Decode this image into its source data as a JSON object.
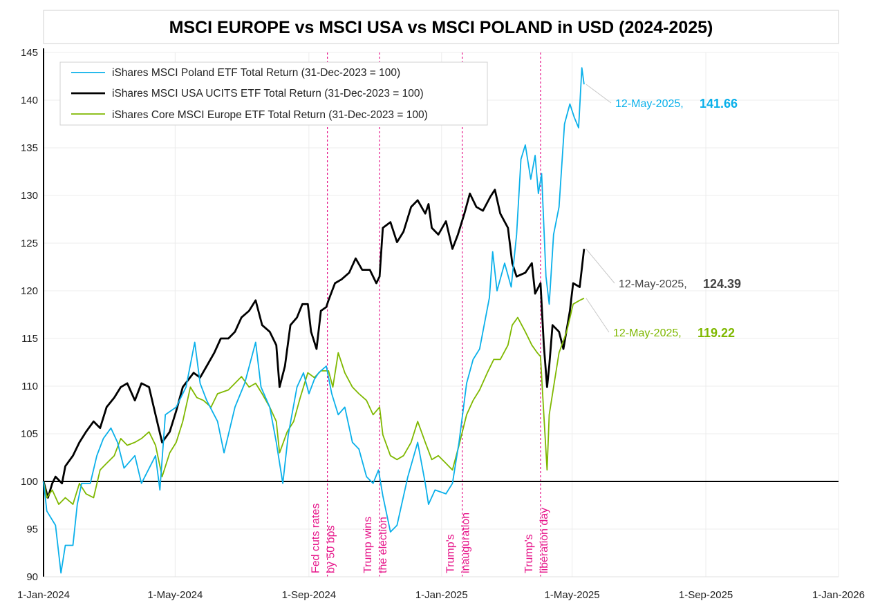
{
  "chart_data": {
    "type": "line",
    "title": "MSCI EUROPE vs MSCI USA vs MSCI POLAND in USD (2024-2025)",
    "x_unit": "days since 1-Jan-2024",
    "xlim": [
      0,
      731
    ],
    "ylim": [
      90,
      145
    ],
    "yticks": [
      90,
      95,
      100,
      105,
      110,
      115,
      120,
      125,
      130,
      135,
      140,
      145
    ],
    "xticks": [
      {
        "day": 0,
        "label": "1-Jan-2024"
      },
      {
        "day": 121,
        "label": "1-May-2024"
      },
      {
        "day": 244,
        "label": "1-Sep-2024"
      },
      {
        "day": 366,
        "label": "1-Jan-2025"
      },
      {
        "day": 486,
        "label": "1-May-2025"
      },
      {
        "day": 609,
        "label": "1-Sep-2025"
      },
      {
        "day": 731,
        "label": "1-Jan-2026"
      }
    ],
    "grid": true,
    "baseline": 100,
    "legend_position": "top-left",
    "series": [
      {
        "name": "iShares MSCI Poland ETF Total Return (31-Dec-2023 = 100)",
        "color": "#0ab0ea",
        "width": 1.8,
        "end_label": {
          "date": "12-May-2025,",
          "value": "141.66"
        },
        "points": [
          [
            0,
            100
          ],
          [
            3,
            96.9
          ],
          [
            11,
            95.4
          ],
          [
            16,
            90.4
          ],
          [
            20,
            93.3
          ],
          [
            27,
            93.3
          ],
          [
            31,
            97.6
          ],
          [
            35,
            99.8
          ],
          [
            43,
            99.8
          ],
          [
            49,
            102.7
          ],
          [
            55,
            104.5
          ],
          [
            62,
            105.6
          ],
          [
            68,
            104.1
          ],
          [
            74,
            101.4
          ],
          [
            84,
            102.7
          ],
          [
            90,
            99.8
          ],
          [
            103,
            102.7
          ],
          [
            107,
            99.1
          ],
          [
            112,
            107
          ],
          [
            122,
            107.8
          ],
          [
            131,
            109.9
          ],
          [
            139,
            114.6
          ],
          [
            144,
            110.3
          ],
          [
            150,
            108.5
          ],
          [
            160,
            106.3
          ],
          [
            166,
            103
          ],
          [
            176,
            107.8
          ],
          [
            185,
            110.3
          ],
          [
            195,
            114.6
          ],
          [
            200,
            109.9
          ],
          [
            208,
            107.8
          ],
          [
            214,
            104.1
          ],
          [
            220,
            99.8
          ],
          [
            225,
            104.9
          ],
          [
            233,
            109.9
          ],
          [
            239,
            111.4
          ],
          [
            244,
            109.2
          ],
          [
            249,
            110.7
          ],
          [
            253,
            111.4
          ],
          [
            260,
            112.1
          ],
          [
            265,
            109.2
          ],
          [
            271,
            107
          ],
          [
            277,
            107.8
          ],
          [
            284,
            104.1
          ],
          [
            290,
            103.4
          ],
          [
            297,
            100.5
          ],
          [
            303,
            99.8
          ],
          [
            308,
            101.2
          ],
          [
            312,
            98.5
          ],
          [
            319,
            94.7
          ],
          [
            325,
            95.4
          ],
          [
            335,
            100.5
          ],
          [
            344,
            104.1
          ],
          [
            351,
            99.8
          ],
          [
            354,
            97.6
          ],
          [
            360,
            99.1
          ],
          [
            370,
            98.7
          ],
          [
            376,
            99.8
          ],
          [
            382,
            104.1
          ],
          [
            389,
            110.3
          ],
          [
            395,
            112.8
          ],
          [
            401,
            113.9
          ],
          [
            410,
            119.3
          ],
          [
            413,
            124.1
          ],
          [
            417,
            120
          ],
          [
            424,
            122.9
          ],
          [
            430,
            120.4
          ],
          [
            435,
            125.9
          ],
          [
            439,
            133.8
          ],
          [
            443,
            135.3
          ],
          [
            448,
            131.7
          ],
          [
            452,
            134.2
          ],
          [
            455,
            130.2
          ],
          [
            458,
            132.3
          ],
          [
            462,
            121.5
          ],
          [
            465,
            118.6
          ],
          [
            469,
            125.9
          ],
          [
            474,
            128.8
          ],
          [
            479,
            137.5
          ],
          [
            484,
            139.6
          ],
          [
            488,
            138.2
          ],
          [
            492,
            137.1
          ],
          [
            495,
            143.4
          ],
          [
            497,
            141.66
          ]
        ]
      },
      {
        "name": "iShares MSCI USA UCITS ETF Total Return (31-Dec-2023 = 100)",
        "color": "#000000",
        "width": 2.8,
        "end_label": {
          "date": "12-May-2025,",
          "value": "124.39"
        },
        "points": [
          [
            0,
            100
          ],
          [
            4,
            98.3
          ],
          [
            8,
            99.8
          ],
          [
            11,
            100.5
          ],
          [
            17,
            99.8
          ],
          [
            20,
            101.6
          ],
          [
            27,
            102.7
          ],
          [
            33,
            104.1
          ],
          [
            39,
            105.2
          ],
          [
            46,
            106.3
          ],
          [
            52,
            105.6
          ],
          [
            58,
            107.8
          ],
          [
            65,
            108.8
          ],
          [
            71,
            109.9
          ],
          [
            77,
            110.3
          ],
          [
            84,
            108.5
          ],
          [
            90,
            110.3
          ],
          [
            97,
            109.9
          ],
          [
            103,
            107
          ],
          [
            109,
            104.1
          ],
          [
            116,
            105.2
          ],
          [
            122,
            107.4
          ],
          [
            128,
            109.9
          ],
          [
            138,
            111.4
          ],
          [
            144,
            110.9
          ],
          [
            150,
            112.1
          ],
          [
            157,
            113.5
          ],
          [
            163,
            115
          ],
          [
            170,
            115
          ],
          [
            176,
            115.7
          ],
          [
            182,
            117.2
          ],
          [
            189,
            117.9
          ],
          [
            195,
            119
          ],
          [
            201,
            116.4
          ],
          [
            208,
            115.7
          ],
          [
            214,
            114.3
          ],
          [
            217,
            109.9
          ],
          [
            222,
            112.1
          ],
          [
            227,
            116.4
          ],
          [
            233,
            117.2
          ],
          [
            238,
            118.6
          ],
          [
            243,
            118.6
          ],
          [
            246,
            115.7
          ],
          [
            251,
            113.9
          ],
          [
            255,
            117.9
          ],
          [
            260,
            118.3
          ],
          [
            262,
            119
          ],
          [
            268,
            120.8
          ],
          [
            274,
            121.2
          ],
          [
            281,
            121.9
          ],
          [
            287,
            123.4
          ],
          [
            293,
            122.2
          ],
          [
            300,
            122.2
          ],
          [
            306,
            120.8
          ],
          [
            309,
            121.5
          ],
          [
            312,
            126.6
          ],
          [
            319,
            127.2
          ],
          [
            325,
            125.1
          ],
          [
            331,
            126.2
          ],
          [
            338,
            128.8
          ],
          [
            344,
            129.5
          ],
          [
            351,
            128.1
          ],
          [
            354,
            129.1
          ],
          [
            357,
            126.6
          ],
          [
            363,
            125.9
          ],
          [
            370,
            127.3
          ],
          [
            376,
            124.4
          ],
          [
            381,
            125.9
          ],
          [
            387,
            128.1
          ],
          [
            392,
            130.2
          ],
          [
            398,
            128.8
          ],
          [
            404,
            128.4
          ],
          [
            411,
            129.9
          ],
          [
            415,
            130.6
          ],
          [
            420,
            128.1
          ],
          [
            427,
            126.6
          ],
          [
            431,
            122.9
          ],
          [
            435,
            121.5
          ],
          [
            443,
            121.9
          ],
          [
            449,
            122.9
          ],
          [
            452,
            119.7
          ],
          [
            457,
            120.8
          ],
          [
            460,
            114.3
          ],
          [
            463,
            109.9
          ],
          [
            465,
            112.1
          ],
          [
            468,
            116.4
          ],
          [
            474,
            115.7
          ],
          [
            478,
            113.9
          ],
          [
            484,
            117.9
          ],
          [
            487,
            120.8
          ],
          [
            493,
            120.4
          ],
          [
            497,
            124.39
          ]
        ]
      },
      {
        "name": "iShares Core MSCI Europe ETF Total Return (31-Dec-2023 = 100)",
        "color": "#7fb800",
        "width": 1.8,
        "end_label": {
          "date": "12-May-2025,",
          "value": "119.22"
        },
        "points": [
          [
            0,
            100
          ],
          [
            3,
            98.3
          ],
          [
            8,
            99.1
          ],
          [
            14,
            97.6
          ],
          [
            20,
            98.3
          ],
          [
            27,
            97.6
          ],
          [
            33,
            99.8
          ],
          [
            39,
            98.7
          ],
          [
            46,
            98.3
          ],
          [
            52,
            101.2
          ],
          [
            58,
            101.9
          ],
          [
            65,
            102.7
          ],
          [
            71,
            104.5
          ],
          [
            77,
            103.8
          ],
          [
            84,
            104.1
          ],
          [
            90,
            104.5
          ],
          [
            97,
            105.2
          ],
          [
            103,
            103.8
          ],
          [
            109,
            100.5
          ],
          [
            116,
            103
          ],
          [
            122,
            104.1
          ],
          [
            128,
            106.3
          ],
          [
            135,
            109.9
          ],
          [
            141,
            108.8
          ],
          [
            147,
            108.5
          ],
          [
            154,
            107.8
          ],
          [
            160,
            109.2
          ],
          [
            170,
            109.6
          ],
          [
            176,
            110.3
          ],
          [
            182,
            111
          ],
          [
            189,
            109.9
          ],
          [
            195,
            110.3
          ],
          [
            201,
            109.2
          ],
          [
            208,
            107.8
          ],
          [
            214,
            106.3
          ],
          [
            217,
            103
          ],
          [
            224,
            105.2
          ],
          [
            230,
            106.3
          ],
          [
            236,
            108.8
          ],
          [
            243,
            111.4
          ],
          [
            249,
            110.9
          ],
          [
            255,
            111.6
          ],
          [
            262,
            111.6
          ],
          [
            266,
            109.9
          ],
          [
            271,
            113.5
          ],
          [
            277,
            111.4
          ],
          [
            284,
            109.9
          ],
          [
            290,
            109.2
          ],
          [
            297,
            108.5
          ],
          [
            303,
            107
          ],
          [
            309,
            107.8
          ],
          [
            312,
            104.9
          ],
          [
            319,
            102.7
          ],
          [
            325,
            102.3
          ],
          [
            331,
            102.7
          ],
          [
            338,
            104.1
          ],
          [
            344,
            106.3
          ],
          [
            351,
            104.1
          ],
          [
            357,
            102.3
          ],
          [
            363,
            102.7
          ],
          [
            370,
            101.9
          ],
          [
            376,
            101.2
          ],
          [
            382,
            103.8
          ],
          [
            389,
            107
          ],
          [
            395,
            108.5
          ],
          [
            401,
            109.6
          ],
          [
            408,
            111.4
          ],
          [
            414,
            112.8
          ],
          [
            420,
            112.8
          ],
          [
            427,
            114.3
          ],
          [
            431,
            116.4
          ],
          [
            436,
            117.2
          ],
          [
            443,
            115.7
          ],
          [
            449,
            114.3
          ],
          [
            454,
            113.5
          ],
          [
            457,
            113.1
          ],
          [
            460,
            107
          ],
          [
            463,
            101.2
          ],
          [
            465,
            107
          ],
          [
            469,
            109.9
          ],
          [
            474,
            113.5
          ],
          [
            481,
            115.7
          ],
          [
            487,
            118.6
          ],
          [
            493,
            119
          ],
          [
            497,
            119.22
          ]
        ]
      }
    ],
    "annotations": [
      {
        "day": 261,
        "lines": [
          "Fed cuts rates",
          "by 50 bps"
        ]
      },
      {
        "day": 309,
        "lines": [
          "Trump wins",
          "the election"
        ]
      },
      {
        "day": 385,
        "lines": [
          "Trump's",
          "inauguration"
        ]
      },
      {
        "day": 457,
        "lines": [
          "Trump's",
          "liberation day"
        ]
      }
    ]
  }
}
